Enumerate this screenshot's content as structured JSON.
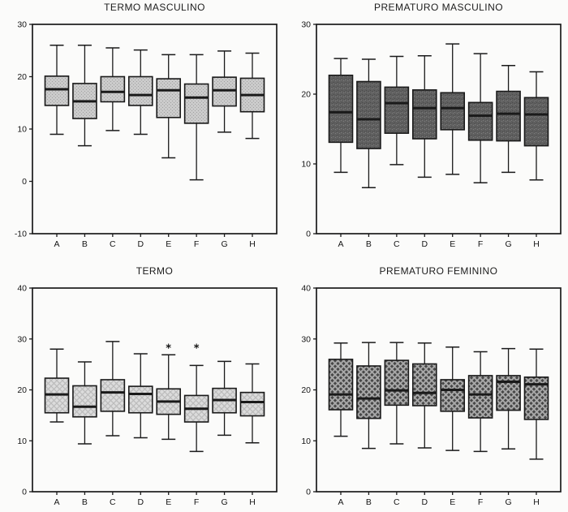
{
  "page": {
    "background": "#fbfbfa",
    "frame_color": "#1a1a1a",
    "text_color": "#1c1c1c"
  },
  "chart_data": [
    {
      "type": "box",
      "title": "TERMO MASCULINO",
      "categories": [
        "A",
        "B",
        "C",
        "D",
        "E",
        "F",
        "G",
        "H"
      ],
      "ylim": [
        -10,
        30
      ],
      "yticks": [
        -10,
        0,
        10,
        20,
        30
      ],
      "grid": false,
      "legend": "none",
      "outlier_symbol": "*",
      "style": {
        "pattern": "dots-light",
        "base": "#cbcbcb",
        "accent": "#a0a0a0",
        "accent2": "#bdbdbd"
      },
      "boxes": [
        {
          "category": "A",
          "whislo": 9.0,
          "q1": 14.5,
          "med": 17.6,
          "q3": 20.1,
          "whishi": 26.0,
          "outliers": []
        },
        {
          "category": "B",
          "whislo": 6.8,
          "q1": 12.0,
          "med": 15.3,
          "q3": 18.7,
          "whishi": 26.0,
          "outliers": []
        },
        {
          "category": "C",
          "whislo": 9.7,
          "q1": 15.2,
          "med": 17.1,
          "q3": 20.0,
          "whishi": 25.5,
          "outliers": []
        },
        {
          "category": "D",
          "whislo": 9.0,
          "q1": 14.5,
          "med": 16.5,
          "q3": 20.0,
          "whishi": 25.1,
          "outliers": []
        },
        {
          "category": "E",
          "whislo": 4.5,
          "q1": 12.2,
          "med": 17.4,
          "q3": 19.6,
          "whishi": 24.2,
          "outliers": []
        },
        {
          "category": "F",
          "whislo": 0.3,
          "q1": 11.1,
          "med": 16.0,
          "q3": 18.6,
          "whishi": 24.2,
          "outliers": []
        },
        {
          "category": "G",
          "whislo": 9.4,
          "q1": 14.4,
          "med": 17.4,
          "q3": 19.9,
          "whishi": 24.9,
          "outliers": []
        },
        {
          "category": "H",
          "whislo": 8.2,
          "q1": 13.3,
          "med": 16.5,
          "q3": 19.7,
          "whishi": 24.5,
          "outliers": []
        }
      ]
    },
    {
      "type": "box",
      "title": "PREMATURO MASCULINO",
      "categories": [
        "A",
        "B",
        "C",
        "D",
        "E",
        "F",
        "G",
        "H"
      ],
      "ylim": [
        0,
        30
      ],
      "yticks": [
        0,
        10,
        20,
        30
      ],
      "grid": false,
      "legend": "none",
      "outlier_symbol": "*",
      "style": {
        "pattern": "speckle-dark",
        "base": "#5f5f5f",
        "accent": "#4a4a4a",
        "accent2": "#7e7e7e"
      },
      "boxes": [
        {
          "category": "A",
          "whislo": 8.8,
          "q1": 13.1,
          "med": 17.4,
          "q3": 22.7,
          "whishi": 25.1,
          "outliers": []
        },
        {
          "category": "B",
          "whislo": 6.6,
          "q1": 12.2,
          "med": 16.4,
          "q3": 21.8,
          "whishi": 25.0,
          "outliers": []
        },
        {
          "category": "C",
          "whislo": 9.9,
          "q1": 14.4,
          "med": 18.7,
          "q3": 21.0,
          "whishi": 25.4,
          "outliers": []
        },
        {
          "category": "D",
          "whislo": 8.1,
          "q1": 13.6,
          "med": 18.0,
          "q3": 20.6,
          "whishi": 25.5,
          "outliers": []
        },
        {
          "category": "E",
          "whislo": 8.5,
          "q1": 14.9,
          "med": 18.0,
          "q3": 20.2,
          "whishi": 27.2,
          "outliers": []
        },
        {
          "category": "F",
          "whislo": 7.3,
          "q1": 13.4,
          "med": 16.9,
          "q3": 18.8,
          "whishi": 25.8,
          "outliers": []
        },
        {
          "category": "G",
          "whislo": 8.8,
          "q1": 13.3,
          "med": 17.2,
          "q3": 20.4,
          "whishi": 24.1,
          "outliers": []
        },
        {
          "category": "H",
          "whislo": 7.7,
          "q1": 12.6,
          "med": 17.1,
          "q3": 19.5,
          "whishi": 23.2,
          "outliers": []
        }
      ]
    },
    {
      "type": "box",
      "title": "TERMO",
      "categories": [
        "A",
        "B",
        "C",
        "D",
        "E",
        "F",
        "G",
        "H"
      ],
      "ylim": [
        0,
        40
      ],
      "yticks": [
        0,
        10,
        20,
        30,
        40
      ],
      "grid": false,
      "legend": "none",
      "outlier_symbol": "*",
      "style": {
        "pattern": "hatch-light",
        "base": "#dcdcdc",
        "accent": "#bcbcbc",
        "accent2": "#cfcfcf"
      },
      "boxes": [
        {
          "category": "A",
          "whislo": 13.7,
          "q1": 15.5,
          "med": 19.1,
          "q3": 22.3,
          "whishi": 28.0,
          "outliers": []
        },
        {
          "category": "B",
          "whislo": 9.4,
          "q1": 14.7,
          "med": 16.7,
          "q3": 20.8,
          "whishi": 25.5,
          "outliers": []
        },
        {
          "category": "C",
          "whislo": 11.0,
          "q1": 15.8,
          "med": 19.5,
          "q3": 22.0,
          "whishi": 29.5,
          "outliers": []
        },
        {
          "category": "D",
          "whislo": 10.6,
          "q1": 15.5,
          "med": 19.2,
          "q3": 20.7,
          "whishi": 27.1,
          "outliers": []
        },
        {
          "category": "E",
          "whislo": 10.3,
          "q1": 15.2,
          "med": 17.7,
          "q3": 20.2,
          "whishi": 26.9,
          "outliers": [
            28.3
          ]
        },
        {
          "category": "F",
          "whislo": 7.9,
          "q1": 13.7,
          "med": 16.3,
          "q3": 18.9,
          "whishi": 24.8,
          "outliers": [
            28.3
          ]
        },
        {
          "category": "G",
          "whislo": 11.1,
          "q1": 15.5,
          "med": 18.0,
          "q3": 20.3,
          "whishi": 25.6,
          "outliers": []
        },
        {
          "category": "H",
          "whislo": 9.6,
          "q1": 14.9,
          "med": 17.6,
          "q3": 19.5,
          "whishi": 25.1,
          "outliers": []
        }
      ]
    },
    {
      "type": "box",
      "title": "PREMATURO FEMININO",
      "categories": [
        "A",
        "B",
        "C",
        "D",
        "E",
        "F",
        "G",
        "H"
      ],
      "ylim": [
        0,
        40
      ],
      "yticks": [
        0,
        10,
        20,
        30,
        40
      ],
      "grid": false,
      "legend": "none",
      "outlier_symbol": "*",
      "style": {
        "pattern": "hatch-dark",
        "base": "#474747",
        "accent": "#a8a8a8",
        "accent2": "#6e6e6e"
      },
      "boxes": [
        {
          "category": "A",
          "whislo": 10.9,
          "q1": 16.1,
          "med": 19.1,
          "q3": 26.0,
          "whishi": 29.2,
          "outliers": []
        },
        {
          "category": "B",
          "whislo": 8.5,
          "q1": 14.4,
          "med": 18.3,
          "q3": 24.7,
          "whishi": 29.3,
          "outliers": []
        },
        {
          "category": "C",
          "whislo": 9.4,
          "q1": 17.0,
          "med": 19.9,
          "q3": 25.8,
          "whishi": 29.3,
          "outliers": []
        },
        {
          "category": "D",
          "whislo": 8.6,
          "q1": 16.9,
          "med": 19.4,
          "q3": 25.1,
          "whishi": 29.2,
          "outliers": []
        },
        {
          "category": "E",
          "whislo": 8.1,
          "q1": 15.8,
          "med": 20.0,
          "q3": 22.0,
          "whishi": 28.4,
          "outliers": []
        },
        {
          "category": "F",
          "whislo": 7.9,
          "q1": 14.5,
          "med": 19.1,
          "q3": 22.8,
          "whishi": 27.5,
          "outliers": []
        },
        {
          "category": "G",
          "whislo": 8.4,
          "q1": 16.0,
          "med": 21.6,
          "q3": 22.8,
          "whishi": 28.1,
          "outliers": []
        },
        {
          "category": "H",
          "whislo": 6.4,
          "q1": 14.2,
          "med": 21.1,
          "q3": 22.5,
          "whishi": 28.0,
          "outliers": []
        }
      ]
    }
  ]
}
